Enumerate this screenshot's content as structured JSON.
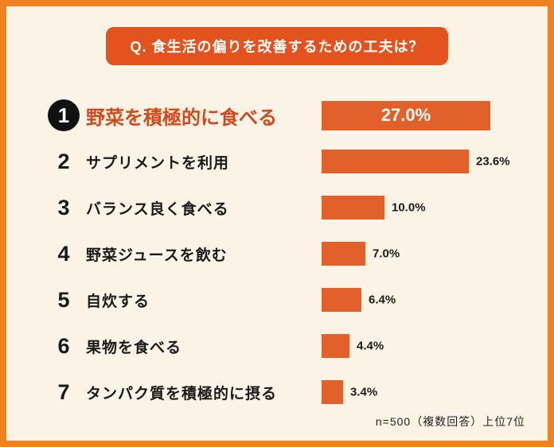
{
  "frame": {
    "border_color": "#f0811f",
    "background": "#fbf4e6"
  },
  "header": {
    "question": "Q. 食生活の偏りを改善するための工夫は？",
    "pill_color": "#e4531d"
  },
  "footer": {
    "note": "n=500（複数回答）上位7位"
  },
  "chart_data": {
    "type": "bar",
    "orientation": "horizontal",
    "title": "Q. 食生活の偏りを改善するための工夫は？",
    "categories": [
      "野菜を積極的に食べる",
      "サプリメントを利用",
      "バランス良く食べる",
      "野菜ジュースを飲む",
      "自炊する",
      "果物を食べる",
      "タンパク質を積極的に摂る"
    ],
    "values": [
      27.0,
      23.6,
      10.0,
      7.0,
      6.4,
      4.4,
      3.4
    ],
    "value_labels": [
      "27.0%",
      "23.6%",
      "10.0%",
      "7.0%",
      "6.4%",
      "4.4%",
      "3.4%"
    ],
    "xlabel": "",
    "ylabel": "",
    "xlim": [
      0,
      30
    ],
    "grid": false,
    "legend": false,
    "bar_color": "#e2612b",
    "note": "n=500（複数回答）上位7位"
  },
  "rows": [
    {
      "rank": "1",
      "label": "野菜を積極的に食べる",
      "value": 27.0,
      "value_label": "27.0%",
      "highlight": true
    },
    {
      "rank": "2",
      "label": "サプリメントを利用",
      "value": 23.6,
      "value_label": "23.6%",
      "highlight": false
    },
    {
      "rank": "3",
      "label": "バランス良く食べる",
      "value": 10.0,
      "value_label": "10.0%",
      "highlight": false
    },
    {
      "rank": "4",
      "label": "野菜ジュースを飲む",
      "value": 7.0,
      "value_label": "7.0%",
      "highlight": false
    },
    {
      "rank": "5",
      "label": "自炊する",
      "value": 6.4,
      "value_label": "6.4%",
      "highlight": false
    },
    {
      "rank": "6",
      "label": "果物を食べる",
      "value": 4.4,
      "value_label": "4.4%",
      "highlight": false
    },
    {
      "rank": "7",
      "label": "タンパク質を積極的に摂る",
      "value": 3.4,
      "value_label": "3.4%",
      "highlight": false
    }
  ]
}
